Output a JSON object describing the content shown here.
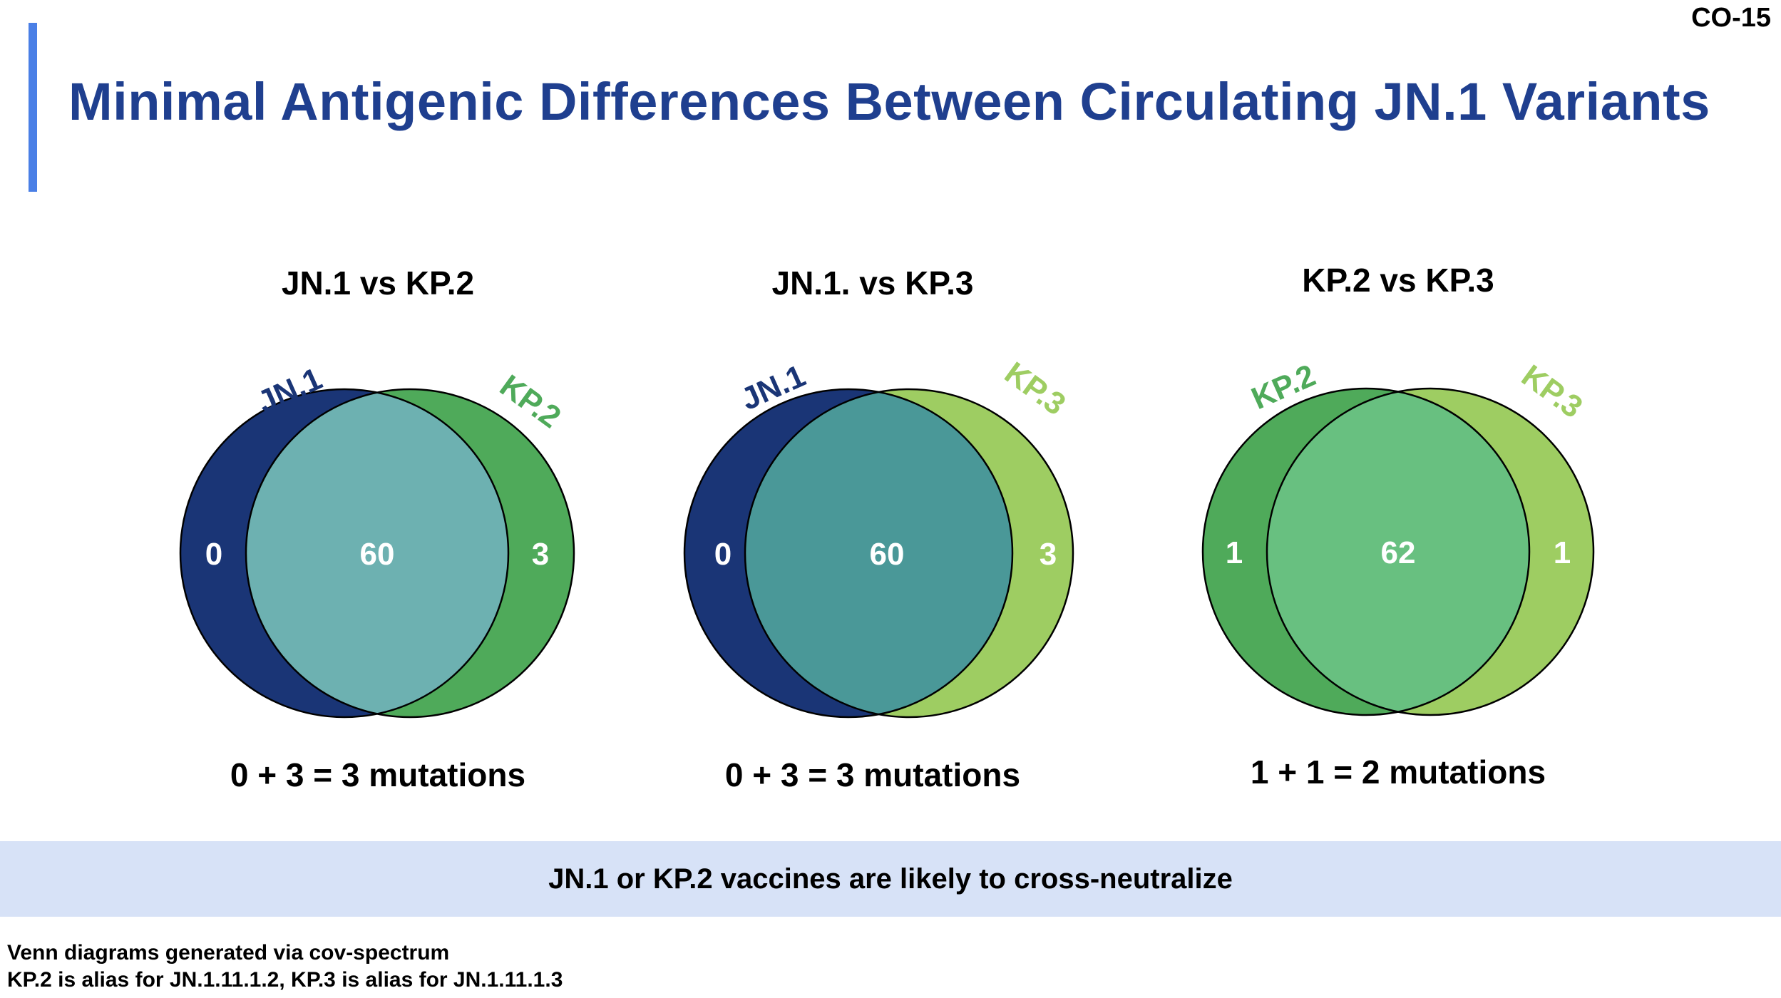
{
  "slide_number": "CO-15",
  "title": "Minimal Antigenic Differences Between Circulating JN.1 Variants",
  "colors": {
    "title": "#1f3f8f",
    "accent_bar": "#4a7fe6",
    "band": "#d7e2f7"
  },
  "venns": [
    {
      "title": "JN.1 vs KP.2",
      "left_label": "JN.1",
      "right_label": "KP.2",
      "left_only": "0",
      "overlap": "60",
      "right_only": "3",
      "equation": "0 + 3 = 3 mutations",
      "left_color": "#1a3576",
      "right_color": "#4faa5a",
      "overlap_color": "#6db1b1",
      "left_label_color": "#1a3576",
      "right_label_color": "#4faa5a"
    },
    {
      "title": "JN.1. vs KP.3",
      "left_label": "JN.1",
      "right_label": "KP.3",
      "left_only": "0",
      "overlap": "60",
      "right_only": "3",
      "equation": "0 + 3 = 3 mutations",
      "left_color": "#1a3576",
      "right_color": "#9ecd62",
      "overlap_color": "#4a9898",
      "left_label_color": "#1a3576",
      "right_label_color": "#9ecd62"
    },
    {
      "title": "KP.2 vs KP.3",
      "left_label": "KP.2",
      "right_label": "KP.3",
      "left_only": "1",
      "overlap": "62",
      "right_only": "1",
      "equation": "1 + 1 = 2 mutations",
      "left_color": "#4faa5a",
      "right_color": "#9ecd62",
      "overlap_color": "#68c080",
      "left_label_color": "#4faa5a",
      "right_label_color": "#9ecd62"
    }
  ],
  "conclusion": "JN.1 or KP.2 vaccines are likely to cross-neutralize",
  "footnotes": [
    "Venn diagrams generated via cov-spectrum",
    "KP.2 is alias for JN.1.11.1.2, KP.3 is alias for JN.1.11.1.3"
  ]
}
